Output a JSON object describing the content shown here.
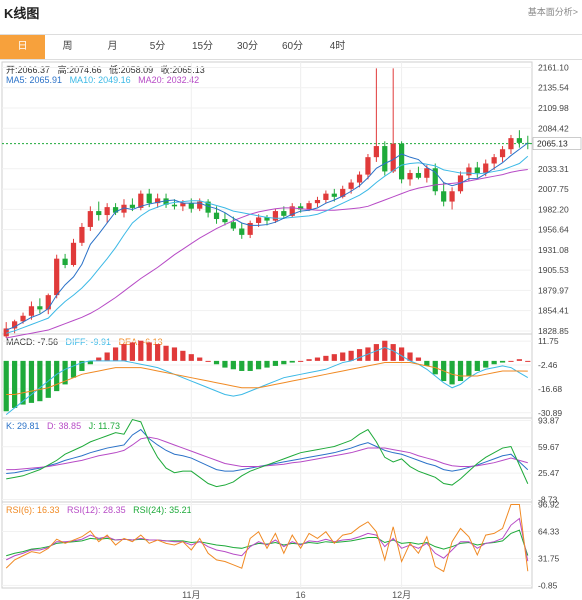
{
  "header": {
    "title": "K线图",
    "link": "基本面分析>"
  },
  "tabs": [
    {
      "label": "日"
    },
    {
      "label": "周"
    },
    {
      "label": "月"
    },
    {
      "label": "5分"
    },
    {
      "label": "15分"
    },
    {
      "label": "30分"
    },
    {
      "label": "60分"
    },
    {
      "label": "4时"
    }
  ],
  "active_tab": 0,
  "ohlc": {
    "open": "开:2066.37",
    "high": "高:2074.66",
    "low": "低:2058.09",
    "close": "收:2065.13"
  },
  "ma": {
    "ma5": "MA5: 2065.91",
    "ma10": "MA10: 2049.16",
    "ma20": "MA20: 2032.42"
  },
  "macd": {
    "macd": "MACD: -7.56",
    "diff": "DIFF: -9.91",
    "dea": "DEA: -6.13"
  },
  "kdj": {
    "k": "K: 29.81",
    "d": "D: 38.85",
    "j": "J: 11.73"
  },
  "rsi": {
    "r6": "RSI(6): 16.33",
    "r12": "RSI(12): 28.35",
    "r24": "RSI(24): 35.21"
  },
  "colors": {
    "up": "#e03a3a",
    "down": "#1eaa3a",
    "ma5": "#2b72c8",
    "ma10": "#3cb9e6",
    "ma20": "#b74bc6",
    "accent": "#f7a13c"
  },
  "chart_data": {
    "type": "candlestick",
    "x_labels": [
      {
        "i": 22,
        "label": "11月"
      },
      {
        "i": 35,
        "label": "16"
      },
      {
        "i": 47,
        "label": "12月"
      }
    ],
    "price": {
      "ticks": [
        "2161.10",
        "2135.54",
        "2109.98",
        "2084.42",
        "2033.31",
        "2007.75",
        "1982.20",
        "1956.64",
        "1931.08",
        "1905.53",
        "1879.97",
        "1854.41",
        "1828.85"
      ],
      "ylim": [
        1825,
        2168
      ],
      "last_price": "2065.13",
      "candles": [
        [
          1822,
          1840,
          1820,
          1832
        ],
        [
          1832,
          1843,
          1826,
          1841
        ],
        [
          1841,
          1852,
          1838,
          1848
        ],
        [
          1848,
          1866,
          1843,
          1860
        ],
        [
          1860,
          1870,
          1851,
          1856
        ],
        [
          1856,
          1876,
          1850,
          1874
        ],
        [
          1874,
          1925,
          1870,
          1920
        ],
        [
          1920,
          1926,
          1908,
          1912
        ],
        [
          1912,
          1945,
          1910,
          1940
        ],
        [
          1940,
          1965,
          1936,
          1960
        ],
        [
          1960,
          1986,
          1955,
          1980
        ],
        [
          1980,
          1992,
          1968,
          1975
        ],
        [
          1975,
          1990,
          1965,
          1985
        ],
        [
          1985,
          1990,
          1975,
          1978
        ],
        [
          1978,
          1995,
          1972,
          1988
        ],
        [
          1988,
          1996,
          1980,
          1984
        ],
        [
          1984,
          2006,
          1981,
          2002
        ],
        [
          2002,
          2008,
          1985,
          1990
        ],
        [
          1990,
          2002,
          1984,
          1996
        ],
        [
          1996,
          2002,
          1984,
          1988
        ],
        [
          1988,
          1995,
          1982,
          1986
        ],
        [
          1986,
          1994,
          1980,
          1990
        ],
        [
          1990,
          1996,
          1978,
          1983
        ],
        [
          1983,
          1996,
          1980,
          1992
        ],
        [
          1992,
          1995,
          1972,
          1978
        ],
        [
          1978,
          1986,
          1964,
          1970
        ],
        [
          1970,
          1978,
          1962,
          1966
        ],
        [
          1966,
          1973,
          1955,
          1958
        ],
        [
          1958,
          1965,
          1945,
          1950
        ],
        [
          1950,
          1968,
          1946,
          1965
        ],
        [
          1965,
          1976,
          1960,
          1972
        ],
        [
          1972,
          1975,
          1962,
          1968
        ],
        [
          1968,
          1983,
          1965,
          1980
        ],
        [
          1980,
          1986,
          1970,
          1974
        ],
        [
          1974,
          1990,
          1972,
          1986
        ],
        [
          1986,
          1990,
          1978,
          1982
        ],
        [
          1982,
          1993,
          1980,
          1990
        ],
        [
          1990,
          1998,
          1985,
          1994
        ],
        [
          1994,
          2006,
          1990,
          2002
        ],
        [
          2002,
          2008,
          1992,
          1998
        ],
        [
          1998,
          2012,
          1996,
          2008
        ],
        [
          2008,
          2020,
          2002,
          2016
        ],
        [
          2016,
          2030,
          2010,
          2026
        ],
        [
          2026,
          2052,
          2020,
          2048
        ],
        [
          2048,
          2160,
          2042,
          2062
        ],
        [
          2062,
          2068,
          2025,
          2030
        ],
        [
          2030,
          2160,
          2028,
          2065
        ],
        [
          2065,
          2068,
          2015,
          2020
        ],
        [
          2020,
          2032,
          2012,
          2028
        ],
        [
          2028,
          2036,
          2020,
          2022
        ],
        [
          2022,
          2038,
          2016,
          2034
        ],
        [
          2034,
          2040,
          2000,
          2005
        ],
        [
          2005,
          2016,
          1986,
          1992
        ],
        [
          1992,
          2010,
          1982,
          2005
        ],
        [
          2005,
          2030,
          2002,
          2025
        ],
        [
          2025,
          2040,
          2018,
          2035
        ],
        [
          2035,
          2042,
          2022,
          2028
        ],
        [
          2028,
          2045,
          2024,
          2040
        ],
        [
          2040,
          2052,
          2032,
          2048
        ],
        [
          2048,
          2062,
          2042,
          2058
        ],
        [
          2058,
          2076,
          2052,
          2072
        ],
        [
          2072,
          2082,
          2060,
          2066
        ],
        [
          2066,
          2075,
          2058,
          2065
        ]
      ],
      "ma5": [
        1830,
        1834,
        1840,
        1846,
        1850,
        1857,
        1874,
        1887,
        1897,
        1913,
        1938,
        1951,
        1965,
        1979,
        1984,
        1982,
        1986,
        1989,
        1991,
        1993,
        1994,
        1990,
        1990,
        1990,
        1986,
        1983,
        1978,
        1971,
        1965,
        1962,
        1962,
        1963,
        1966,
        1971,
        1976,
        1980,
        1981,
        1984,
        1990,
        1994,
        1999,
        2005,
        2012,
        2022,
        2034,
        2040,
        2045,
        2052,
        2048,
        2045,
        2035,
        2029,
        2016,
        2012,
        2015,
        2021,
        2021,
        2027,
        2034,
        2041,
        2050,
        2058,
        2065.9
      ],
      "ma10": [
        1826,
        1829,
        1833,
        1837,
        1841,
        1845,
        1856,
        1866,
        1874,
        1883,
        1894,
        1907,
        1920,
        1934,
        1950,
        1965,
        1974,
        1981,
        1985,
        1989,
        1991,
        1992,
        1993,
        1993,
        1990,
        1987,
        1984,
        1980,
        1978,
        1976,
        1974,
        1972,
        1971,
        1971,
        1972,
        1973,
        1974,
        1976,
        1980,
        1985,
        1990,
        1995,
        2000,
        2007,
        2016,
        2024,
        2031,
        2038,
        2040,
        2041,
        2039,
        2037,
        2032,
        2030,
        2028,
        2028,
        2027,
        2028,
        2030,
        2032,
        2036,
        2040,
        2049.2
      ],
      "ma20": [
        1820,
        1822,
        1824,
        1826,
        1828,
        1830,
        1834,
        1838,
        1842,
        1846,
        1851,
        1857,
        1864,
        1871,
        1879,
        1887,
        1895,
        1902,
        1909,
        1917,
        1925,
        1932,
        1939,
        1946,
        1952,
        1958,
        1963,
        1968,
        1972,
        1976,
        1979,
        1981,
        1983,
        1984,
        1984,
        1983,
        1982,
        1981,
        1981,
        1981,
        1982,
        1983,
        1984,
        1986,
        1990,
        1994,
        1998,
        2002,
        2006,
        2009,
        2011,
        2013,
        2014,
        2015,
        2016,
        2018,
        2020,
        2022,
        2024,
        2026,
        2029,
        2031,
        2032.4
      ]
    },
    "macd": {
      "ticks": [
        "11.75",
        "-2.46",
        "-16.68",
        "-30.89"
      ],
      "ylim": [
        -34,
        16
      ],
      "hist": [
        -30,
        -28,
        -26,
        -25,
        -24,
        -22,
        -18,
        -14,
        -10,
        -6,
        -2,
        2,
        5,
        8,
        10,
        11,
        12,
        11,
        10,
        9,
        8,
        6,
        4,
        2,
        0,
        -2,
        -4,
        -5,
        -6,
        -6,
        -5,
        -4,
        -3,
        -2,
        -1,
        0,
        1,
        2,
        3,
        4,
        5,
        6,
        7,
        8,
        10,
        12,
        10,
        8,
        5,
        2,
        -3,
        -8,
        -12,
        -14,
        -12,
        -9,
        -6,
        -4,
        -2,
        -1,
        0,
        1,
        0
      ],
      "diff": [
        -32,
        -28,
        -24,
        -20,
        -16,
        -12,
        -8,
        -5,
        -3,
        -1,
        0,
        0,
        0,
        0,
        0,
        -1,
        -2,
        -3,
        -4,
        -6,
        -8,
        -10,
        -12,
        -14,
        -16,
        -18,
        -20,
        -21,
        -20,
        -18,
        -16,
        -14,
        -12,
        -10,
        -9,
        -8,
        -7,
        -6,
        -5,
        -3,
        -1,
        0,
        2,
        4,
        6,
        8,
        6,
        3,
        0,
        -2,
        -5,
        -9,
        -13,
        -16,
        -14,
        -10,
        -7,
        -5,
        -4,
        -3,
        -4,
        -7,
        -9.9
      ],
      "dea": [
        -20,
        -20,
        -19,
        -18,
        -17,
        -16,
        -14,
        -12,
        -10,
        -8,
        -7,
        -6,
        -5,
        -4,
        -4,
        -4,
        -4,
        -5,
        -6,
        -7,
        -8,
        -9,
        -10,
        -11,
        -12,
        -13,
        -14,
        -15,
        -16,
        -16,
        -16,
        -15,
        -14,
        -13,
        -12,
        -11,
        -10,
        -9,
        -8,
        -7,
        -6,
        -5,
        -4,
        -3,
        -2,
        -1,
        -1,
        -1,
        -1,
        -2,
        -3,
        -4,
        -6,
        -8,
        -9,
        -9,
        -9,
        -8,
        -7,
        -6,
        -6,
        -6,
        -6.1
      ]
    },
    "kdj": {
      "ticks": [
        "93.87",
        "59.67",
        "25.47",
        "-8.73"
      ],
      "ylim": [
        -12,
        97
      ],
      "k": [
        25,
        26,
        28,
        30,
        32,
        35,
        38,
        42,
        45,
        48,
        52,
        55,
        58,
        60,
        62,
        75,
        82,
        70,
        62,
        55,
        50,
        48,
        45,
        40,
        35,
        30,
        28,
        28,
        30,
        32,
        34,
        36,
        38,
        40,
        42,
        44,
        46,
        48,
        50,
        52,
        55,
        58,
        62,
        65,
        60,
        55,
        52,
        50,
        46,
        42,
        38,
        35,
        30,
        28,
        30,
        33,
        36,
        40,
        44,
        48,
        50,
        40,
        29.8
      ],
      "d": [
        30,
        30,
        31,
        32,
        33,
        34,
        36,
        38,
        40,
        42,
        45,
        48,
        50,
        52,
        55,
        62,
        70,
        72,
        70,
        66,
        62,
        58,
        54,
        50,
        46,
        42,
        38,
        36,
        34,
        34,
        34,
        35,
        36,
        37,
        39,
        40,
        42,
        44,
        46,
        48,
        50,
        52,
        55,
        58,
        58,
        58,
        56,
        54,
        52,
        48,
        45,
        42,
        38,
        35,
        34,
        34,
        35,
        37,
        39,
        42,
        45,
        42,
        38.9
      ],
      "j": [
        18,
        20,
        22,
        26,
        30,
        36,
        42,
        50,
        55,
        60,
        66,
        70,
        74,
        78,
        76,
        95,
        92,
        66,
        46,
        32,
        26,
        28,
        28,
        20,
        12,
        8,
        10,
        14,
        22,
        28,
        32,
        36,
        40,
        44,
        48,
        52,
        54,
        56,
        58,
        60,
        64,
        68,
        76,
        82,
        66,
        46,
        40,
        44,
        34,
        28,
        24,
        20,
        12,
        10,
        18,
        28,
        38,
        46,
        52,
        58,
        60,
        36,
        11.7
      ]
    },
    "rsi": {
      "ticks": [
        "96.92",
        "64.33",
        "31.75",
        "-0.85"
      ],
      "ylim": [
        -4,
        100
      ],
      "r6": [
        20,
        30,
        35,
        40,
        38,
        44,
        55,
        50,
        54,
        58,
        65,
        52,
        60,
        48,
        56,
        52,
        60,
        50,
        54,
        50,
        48,
        52,
        42,
        56,
        38,
        30,
        28,
        24,
        20,
        56,
        64,
        44,
        62,
        38,
        60,
        44,
        62,
        56,
        64,
        50,
        60,
        62,
        70,
        76,
        64,
        30,
        70,
        28,
        50,
        38,
        58,
        22,
        16,
        52,
        68,
        58,
        36,
        60,
        62,
        68,
        97,
        97,
        16.3
      ],
      "r12": [
        30,
        35,
        38,
        42,
        42,
        45,
        52,
        52,
        53,
        55,
        60,
        56,
        58,
        54,
        55,
        54,
        56,
        54,
        54,
        53,
        52,
        52,
        48,
        52,
        46,
        42,
        40,
        37,
        35,
        46,
        52,
        48,
        54,
        46,
        52,
        48,
        53,
        52,
        55,
        52,
        54,
        55,
        58,
        62,
        60,
        46,
        56,
        44,
        48,
        44,
        50,
        38,
        32,
        42,
        52,
        52,
        44,
        50,
        52,
        56,
        72,
        80,
        28.4
      ],
      "r24": [
        35,
        38,
        40,
        43,
        44,
        46,
        50,
        51,
        52,
        53,
        56,
        55,
        56,
        54,
        55,
        54,
        55,
        54,
        54,
        53,
        53,
        53,
        51,
        52,
        50,
        48,
        47,
        45,
        44,
        47,
        50,
        49,
        51,
        48,
        50,
        49,
        51,
        50,
        52,
        51,
        52,
        53,
        55,
        57,
        57,
        51,
        54,
        50,
        51,
        49,
        51,
        46,
        43,
        46,
        50,
        51,
        48,
        50,
        51,
        53,
        62,
        66,
        35.2
      ]
    }
  }
}
